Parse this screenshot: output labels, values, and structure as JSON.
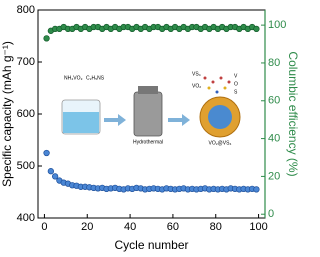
{
  "chart_data": {
    "type": "scatter",
    "xlabel": "Cycle number",
    "ylabel": "Specific capacity (mAh g⁻¹)",
    "y2label": "Columbic efficiency (%)",
    "xlim": [
      -3,
      103
    ],
    "xticks": [
      0,
      20,
      40,
      60,
      80,
      100
    ],
    "ylim": [
      400,
      800
    ],
    "yticks": [
      400,
      500,
      600,
      700,
      800
    ],
    "y2lim": [
      -2,
      108
    ],
    "y2ticks": [
      0,
      20,
      40,
      60,
      80,
      100
    ],
    "x": [
      1,
      3,
      5,
      7,
      9,
      11,
      13,
      15,
      17,
      19,
      21,
      23,
      25,
      27,
      29,
      31,
      33,
      35,
      37,
      39,
      41,
      43,
      45,
      47,
      49,
      51,
      53,
      55,
      57,
      59,
      61,
      63,
      65,
      67,
      69,
      71,
      73,
      75,
      77,
      79,
      81,
      83,
      85,
      87,
      89,
      91,
      93,
      95,
      97,
      99
    ],
    "series": [
      {
        "color": "#4a86d4",
        "axis": "y",
        "values": [
          525,
          490,
          480,
          472,
          468,
          466,
          463,
          462,
          460,
          460,
          459,
          458,
          457,
          458,
          456,
          457,
          458,
          456,
          455,
          457,
          456,
          458,
          457,
          455,
          456,
          457,
          456,
          455,
          457,
          456,
          455,
          456,
          457,
          455,
          456,
          455,
          456,
          457,
          455,
          456,
          455,
          456,
          455,
          457,
          456,
          455,
          456,
          455,
          456,
          455
        ]
      },
      {
        "color": "#2e8b4a",
        "axis": "y2",
        "values": [
          93,
          97,
          98,
          98,
          99,
          98,
          98,
          99,
          98,
          99,
          98,
          99,
          99,
          98,
          99,
          98,
          99,
          98,
          99,
          99,
          98,
          99,
          98,
          99,
          98,
          99,
          99,
          98,
          99,
          98,
          99,
          98,
          99,
          98,
          99,
          99,
          98,
          99,
          98,
          99,
          98,
          99,
          98,
          99,
          99,
          98,
          99,
          98,
          99,
          98
        ]
      }
    ],
    "annotations": [
      "NH₄VO₃",
      "C₂H₅NS",
      "Hydrothermal",
      "VS₄",
      "VO₂",
      "V",
      "O",
      "S",
      "VO₂@VS₄"
    ]
  }
}
